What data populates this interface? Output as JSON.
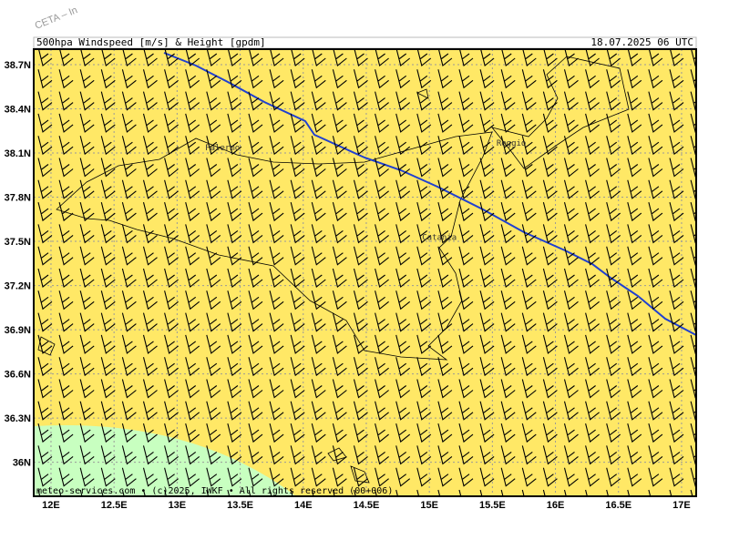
{
  "watermark": "CETA – In",
  "header": {
    "title": "500hpa Windspeed [m/s] & Height [gpdm]",
    "valid": "18.07.2025 06 UTC"
  },
  "map": {
    "xlim": [
      11.863,
      17.116
    ],
    "ylim": [
      35.769,
      38.805
    ],
    "xticks": [
      {
        "value": 12,
        "label": "12E"
      },
      {
        "value": 12.5,
        "label": "12.5E"
      },
      {
        "value": 13,
        "label": "13E"
      },
      {
        "value": 13.5,
        "label": "13.5E"
      },
      {
        "value": 14,
        "label": "14E"
      },
      {
        "value": 14.5,
        "label": "14.5E"
      },
      {
        "value": 15,
        "label": "15E"
      },
      {
        "value": 15.5,
        "label": "15.5E"
      },
      {
        "value": 16,
        "label": "16E"
      },
      {
        "value": 16.5,
        "label": "16.5E"
      },
      {
        "value": 17,
        "label": "17E"
      }
    ],
    "yticks": [
      {
        "value": 38.7,
        "label": "38.7N"
      },
      {
        "value": 38.4,
        "label": "38.4N"
      },
      {
        "value": 38.1,
        "label": "38.1N"
      },
      {
        "value": 37.8,
        "label": "37.8N"
      },
      {
        "value": 37.5,
        "label": "37.5N"
      },
      {
        "value": 37.2,
        "label": "37.2N"
      },
      {
        "value": 36.9,
        "label": "36.9N"
      },
      {
        "value": 36.6,
        "label": "36.6N"
      },
      {
        "value": 36.3,
        "label": "36.3N"
      },
      {
        "value": 36,
        "label": "36N"
      }
    ],
    "places": [
      {
        "name": "Palermo",
        "lon": 13.36,
        "lat": 38.12
      },
      {
        "name": "Reggio",
        "lon": 15.65,
        "lat": 38.15
      },
      {
        "name": "Catania",
        "lon": 15.08,
        "lat": 37.51
      }
    ],
    "footer": "meteo-services.com • (c)2025, IWKF • All rights reserved (00+006)"
  }
}
